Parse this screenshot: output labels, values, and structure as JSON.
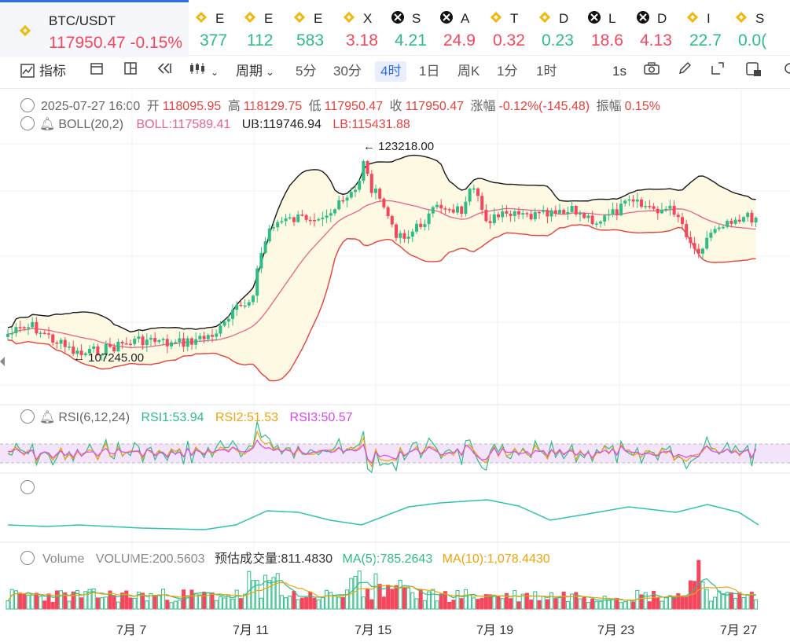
{
  "tickers": [
    {
      "name": "BTC/USDT",
      "price": "117950.47",
      "change": "-0.15%",
      "icon": "binance-icon"
    },
    {
      "name": "E",
      "price": "377",
      "icon": "binance-icon"
    },
    {
      "name": "E",
      "price": "112",
      "icon": "binance-icon"
    },
    {
      "name": "E",
      "price": "583",
      "icon": "binance-icon"
    },
    {
      "name": "X",
      "price": "3.18",
      "icon": "binance-icon"
    },
    {
      "name": "S",
      "price": "4.21",
      "icon": "cross-icon"
    },
    {
      "name": "A",
      "price": "24.9",
      "icon": "cross-icon"
    },
    {
      "name": "T",
      "price": "0.32",
      "icon": "binance-icon"
    },
    {
      "name": "D",
      "price": "0.23",
      "icon": "binance-icon"
    },
    {
      "name": "L",
      "price": "18.6",
      "icon": "cross-icon"
    },
    {
      "name": "D",
      "price": "4.13",
      "icon": "cross-icon"
    },
    {
      "name": "I",
      "price": "22.7",
      "icon": "binance-icon"
    },
    {
      "name": "S",
      "price": "0.0(",
      "icon": "binance-icon"
    }
  ],
  "toolbar": {
    "indicator_label": "指标",
    "period_label": "周期",
    "periods": [
      "5分",
      "30分",
      "4时",
      "1日",
      "周K",
      "1分",
      "1时"
    ],
    "active_period": "4时",
    "interval": "1s"
  },
  "ohlc": {
    "date": "2025-07-27 16:00",
    "open_label": "开",
    "open": "118095.95",
    "high_label": "高",
    "high": "118129.75",
    "low_label": "低",
    "low": "117950.47",
    "close_label": "收",
    "close": "117950.47",
    "change_label": "涨幅",
    "change": "-0.12%(-145.48)",
    "amp_label": "振幅",
    "amp": "0.15%"
  },
  "boll": {
    "name": "BOLL(20,2)",
    "mid": "BOLL:117589.41",
    "ub": "UB:119746.94",
    "lb": "LB:115431.88"
  },
  "rsi": {
    "name": "RSI(6,12,24)",
    "rsi1": "RSI1:53.94",
    "rsi2": "RSI2:51.53",
    "rsi3": "RSI3:50.57"
  },
  "volume": {
    "name": "Volume",
    "vol": "VOLUME:200.5603",
    "est": "预估成交量:811.4830",
    "ma5": "MA(5):785.2643",
    "ma10": "MA(10):1,078.4430"
  },
  "annotations": {
    "high": "123218.00",
    "low": "107245.00"
  },
  "colors": {
    "up": "#2ebd85",
    "down": "#f6465d",
    "boll_up": "#1a1a1a",
    "boll_mid": "#e8638c",
    "boll_low": "#e8413c",
    "band_fill": "#fdf9e3",
    "rsi1": "#2ebd85",
    "rsi2": "#f0a30a",
    "rsi3": "#d946ef",
    "accent": "#2d6fe5"
  },
  "chart_data": {
    "type": "candlestick",
    "x_labels": [
      "7月 7",
      "7月 11",
      "7月 15",
      "7月 19",
      "7月 23",
      "7月 27"
    ],
    "y_annotated_high": 123218.0,
    "y_annotated_low": 107245.0,
    "last_close": 117950.47
  }
}
